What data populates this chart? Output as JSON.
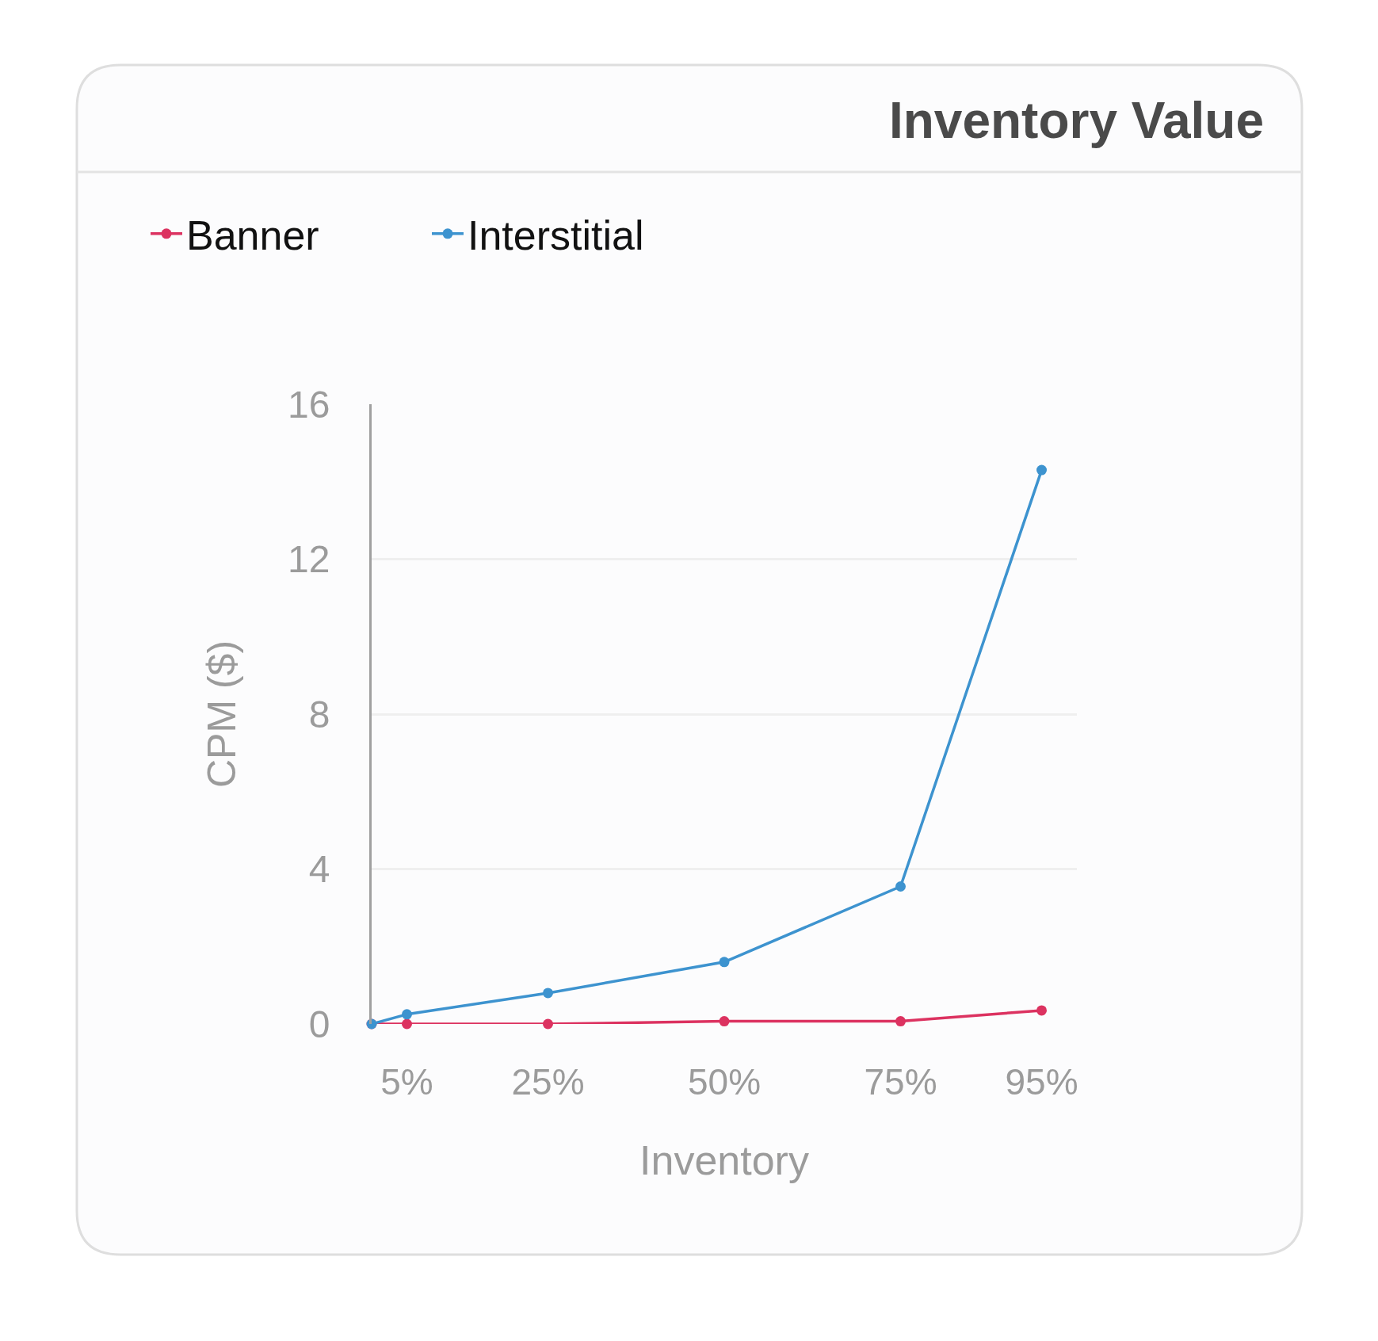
{
  "chart_data": {
    "type": "line",
    "title": "Inventory Value",
    "xlabel": "Inventory",
    "ylabel": "CPM ($)",
    "x": [
      0,
      5,
      25,
      50,
      75,
      95
    ],
    "xlim": [
      0,
      100
    ],
    "xticks": [
      {
        "value": 5,
        "label": "5%"
      },
      {
        "value": 25,
        "label": "25%"
      },
      {
        "value": 50,
        "label": "50%"
      },
      {
        "value": 75,
        "label": "75%"
      },
      {
        "value": 95,
        "label": "95%"
      }
    ],
    "ylim": [
      0,
      16
    ],
    "yticks": [
      0,
      4,
      8,
      12,
      16
    ],
    "series": [
      {
        "name": "Banner",
        "color": "#dc3260",
        "values": [
          0,
          0,
          0,
          0.07,
          0.07,
          0.35
        ]
      },
      {
        "name": "Interstitial",
        "color": "#3d93cf",
        "values": [
          0,
          0.25,
          0.8,
          1.6,
          3.55,
          14.3
        ]
      }
    ],
    "grid": "y",
    "legend": "top left",
    "marker": "circle",
    "line_style": "solid"
  }
}
